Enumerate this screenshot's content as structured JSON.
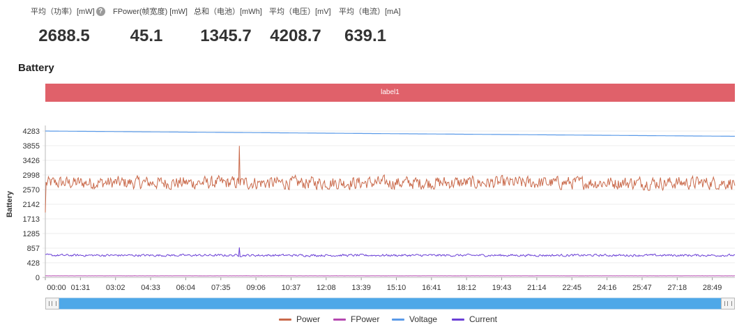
{
  "stats": [
    {
      "label": "平均（功率）[mW]",
      "value": "2688.5",
      "help": "?"
    },
    {
      "label": "FPower(帧宽度) [mW]",
      "value": "45.1"
    },
    {
      "label": "总和（电池）[mWh]",
      "value": "1345.7"
    },
    {
      "label": "平均（电压）[mV]",
      "value": "4208.7"
    },
    {
      "label": "平均（电流）[mA]",
      "value": "639.1"
    }
  ],
  "section_title": "Battery",
  "label_bar": "label1",
  "chart_data": {
    "type": "line",
    "ylabel": "Battery",
    "xlabel": "",
    "ylim": [
      0,
      4283
    ],
    "y_ticks": [
      "0",
      "428",
      "857",
      "1285",
      "1713",
      "2142",
      "2570",
      "2998",
      "3426",
      "3855",
      "4283"
    ],
    "x_ticks": [
      "00:00",
      "01:31",
      "03:02",
      "04:33",
      "06:04",
      "07:35",
      "09:06",
      "10:37",
      "12:08",
      "13:39",
      "15:10",
      "16:41",
      "18:12",
      "19:43",
      "21:14",
      "22:45",
      "24:16",
      "25:47",
      "27:18",
      "28:49"
    ],
    "grid": true,
    "legend_position": "bottom-center",
    "series": [
      {
        "name": "Power",
        "color": "#c9694a",
        "approx_mean": 2688,
        "range": [
          2200,
          3200
        ],
        "spike": {
          "at": "08:18",
          "value": 3850
        }
      },
      {
        "name": "FPower",
        "color": "#b548b0",
        "approx_mean": 45
      },
      {
        "name": "Voltage",
        "color": "#5a9ae8",
        "start": 4283,
        "end": 4130
      },
      {
        "name": "Current",
        "color": "#6a3fd6",
        "approx_mean": 639,
        "range": [
          560,
          740
        ],
        "spike": {
          "at": "08:18",
          "value": 880
        }
      }
    ]
  },
  "legend": [
    {
      "name": "Power",
      "color": "#c9694a"
    },
    {
      "name": "FPower",
      "color": "#b548b0"
    },
    {
      "name": "Voltage",
      "color": "#5a9ae8"
    },
    {
      "name": "Current",
      "color": "#6a3fd6"
    }
  ]
}
